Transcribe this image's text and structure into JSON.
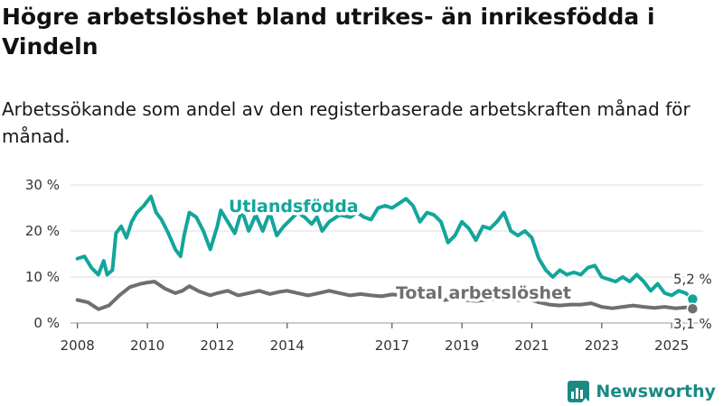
{
  "title": "Högre arbetslöshet bland utrikes- än inrikesfödda i Vindeln",
  "subtitle": "Arbetssökande som andel av den registerbaserade arbetskraften månad för månad.",
  "brand": {
    "name": "Newsworthy",
    "logo_icon": "newsworthy-chart-logo-icon"
  },
  "colors": {
    "utlandsfodda": "#13a59b",
    "total": "#6f6f6f",
    "grid": "#dddddd"
  },
  "chart_data": {
    "type": "line",
    "title": "Högre arbetslöshet bland utrikes- än inrikesfödda i Vindeln",
    "xlabel": "",
    "ylabel": "",
    "x_range": [
      2007.8,
      2025.9
    ],
    "ylim": [
      0,
      30
    ],
    "y_ticks": [
      0,
      10,
      20,
      30
    ],
    "y_tick_labels": [
      "0 %",
      "10 %",
      "20 %",
      "30 %"
    ],
    "x_ticks": [
      2008,
      2010,
      2012,
      2014,
      2017,
      2019,
      2021,
      2023,
      2025
    ],
    "x_tick_labels": [
      "2008",
      "2010",
      "2012",
      "2014",
      "2017",
      "2019",
      "2021",
      "2023",
      "2025"
    ],
    "grid": true,
    "series": [
      {
        "name": "Utlandsfödda",
        "label": "Utlandsfödda",
        "color": "#13a59b",
        "end_label": "5,2 %",
        "points": [
          [
            2008.0,
            14.0
          ],
          [
            2008.2,
            14.5
          ],
          [
            2008.4,
            12.0
          ],
          [
            2008.6,
            10.5
          ],
          [
            2008.75,
            13.5
          ],
          [
            2008.85,
            10.5
          ],
          [
            2009.0,
            11.5
          ],
          [
            2009.1,
            19.5
          ],
          [
            2009.25,
            21.0
          ],
          [
            2009.4,
            18.5
          ],
          [
            2009.55,
            22.0
          ],
          [
            2009.7,
            24.0
          ],
          [
            2009.9,
            25.5
          ],
          [
            2010.0,
            26.5
          ],
          [
            2010.1,
            27.5
          ],
          [
            2010.25,
            24.0
          ],
          [
            2010.4,
            22.5
          ],
          [
            2010.6,
            19.5
          ],
          [
            2010.8,
            16.0
          ],
          [
            2010.95,
            14.5
          ],
          [
            2011.05,
            19.0
          ],
          [
            2011.2,
            24.0
          ],
          [
            2011.4,
            23.0
          ],
          [
            2011.6,
            20.0
          ],
          [
            2011.8,
            16.0
          ],
          [
            2012.0,
            21.0
          ],
          [
            2012.1,
            24.5
          ],
          [
            2012.3,
            22.0
          ],
          [
            2012.5,
            19.5
          ],
          [
            2012.7,
            24.5
          ],
          [
            2012.9,
            20.0
          ],
          [
            2013.1,
            23.5
          ],
          [
            2013.3,
            20.0
          ],
          [
            2013.5,
            24.0
          ],
          [
            2013.7,
            19.0
          ],
          [
            2013.9,
            21.0
          ],
          [
            2014.1,
            22.5
          ],
          [
            2014.3,
            24.0
          ],
          [
            2014.5,
            23.0
          ],
          [
            2014.7,
            21.5
          ],
          [
            2014.85,
            23.0
          ],
          [
            2015.0,
            20.0
          ],
          [
            2015.2,
            22.0
          ],
          [
            2015.5,
            23.5
          ],
          [
            2015.8,
            23.0
          ],
          [
            2016.0,
            24.0
          ],
          [
            2016.2,
            23.0
          ],
          [
            2016.4,
            22.5
          ],
          [
            2016.6,
            25.0
          ],
          [
            2016.8,
            25.5
          ],
          [
            2017.0,
            25.0
          ],
          [
            2017.2,
            26.0
          ],
          [
            2017.4,
            27.0
          ],
          [
            2017.6,
            25.5
          ],
          [
            2017.8,
            22.0
          ],
          [
            2018.0,
            24.0
          ],
          [
            2018.2,
            23.5
          ],
          [
            2018.4,
            22.0
          ],
          [
            2018.6,
            17.5
          ],
          [
            2018.8,
            19.0
          ],
          [
            2019.0,
            22.0
          ],
          [
            2019.2,
            20.5
          ],
          [
            2019.4,
            18.0
          ],
          [
            2019.6,
            21.0
          ],
          [
            2019.8,
            20.5
          ],
          [
            2020.0,
            22.0
          ],
          [
            2020.2,
            24.0
          ],
          [
            2020.4,
            20.0
          ],
          [
            2020.6,
            19.0
          ],
          [
            2020.8,
            20.0
          ],
          [
            2021.0,
            18.5
          ],
          [
            2021.2,
            14.0
          ],
          [
            2021.4,
            11.5
          ],
          [
            2021.6,
            10.0
          ],
          [
            2021.8,
            11.5
          ],
          [
            2022.0,
            10.5
          ],
          [
            2022.2,
            11.0
          ],
          [
            2022.4,
            10.5
          ],
          [
            2022.6,
            12.0
          ],
          [
            2022.8,
            12.5
          ],
          [
            2023.0,
            10.0
          ],
          [
            2023.2,
            9.5
          ],
          [
            2023.4,
            9.0
          ],
          [
            2023.6,
            10.0
          ],
          [
            2023.8,
            9.0
          ],
          [
            2024.0,
            10.5
          ],
          [
            2024.2,
            9.0
          ],
          [
            2024.4,
            7.0
          ],
          [
            2024.6,
            8.5
          ],
          [
            2024.8,
            6.5
          ],
          [
            2025.0,
            6.0
          ],
          [
            2025.2,
            7.0
          ],
          [
            2025.4,
            6.5
          ],
          [
            2025.6,
            5.2
          ]
        ]
      },
      {
        "name": "Total arbetslöshet",
        "label": "Total arbetslöshet",
        "color": "#6f6f6f",
        "end_label": "3,1 %",
        "points": [
          [
            2008.0,
            5.0
          ],
          [
            2008.3,
            4.5
          ],
          [
            2008.6,
            3.0
          ],
          [
            2008.9,
            3.8
          ],
          [
            2009.2,
            6.0
          ],
          [
            2009.5,
            7.8
          ],
          [
            2009.8,
            8.5
          ],
          [
            2010.0,
            8.8
          ],
          [
            2010.2,
            9.0
          ],
          [
            2010.5,
            7.5
          ],
          [
            2010.8,
            6.5
          ],
          [
            2011.0,
            7.0
          ],
          [
            2011.2,
            8.0
          ],
          [
            2011.5,
            6.8
          ],
          [
            2011.8,
            6.0
          ],
          [
            2012.0,
            6.5
          ],
          [
            2012.3,
            7.0
          ],
          [
            2012.6,
            6.0
          ],
          [
            2012.9,
            6.5
          ],
          [
            2013.2,
            7.0
          ],
          [
            2013.5,
            6.3
          ],
          [
            2013.8,
            6.8
          ],
          [
            2014.0,
            7.0
          ],
          [
            2014.3,
            6.5
          ],
          [
            2014.6,
            6.0
          ],
          [
            2014.9,
            6.5
          ],
          [
            2015.2,
            7.0
          ],
          [
            2015.5,
            6.5
          ],
          [
            2015.8,
            6.0
          ],
          [
            2016.1,
            6.3
          ],
          [
            2016.4,
            6.0
          ],
          [
            2016.7,
            5.8
          ],
          [
            2017.0,
            6.2
          ],
          [
            2017.3,
            6.0
          ],
          [
            2017.6,
            5.5
          ],
          [
            2017.9,
            5.8
          ],
          [
            2018.2,
            5.5
          ],
          [
            2018.5,
            5.0
          ],
          [
            2018.8,
            5.3
          ],
          [
            2019.1,
            5.0
          ],
          [
            2019.4,
            4.8
          ],
          [
            2019.7,
            5.0
          ],
          [
            2020.0,
            5.2
          ],
          [
            2020.3,
            5.5
          ],
          [
            2020.6,
            5.0
          ],
          [
            2020.9,
            5.2
          ],
          [
            2021.2,
            4.5
          ],
          [
            2021.5,
            4.0
          ],
          [
            2021.8,
            3.8
          ],
          [
            2022.1,
            4.0
          ],
          [
            2022.4,
            4.0
          ],
          [
            2022.7,
            4.3
          ],
          [
            2023.0,
            3.5
          ],
          [
            2023.3,
            3.2
          ],
          [
            2023.6,
            3.5
          ],
          [
            2023.9,
            3.8
          ],
          [
            2024.2,
            3.5
          ],
          [
            2024.5,
            3.3
          ],
          [
            2024.8,
            3.5
          ],
          [
            2025.1,
            3.2
          ],
          [
            2025.4,
            3.4
          ],
          [
            2025.6,
            3.1
          ]
        ]
      }
    ]
  }
}
